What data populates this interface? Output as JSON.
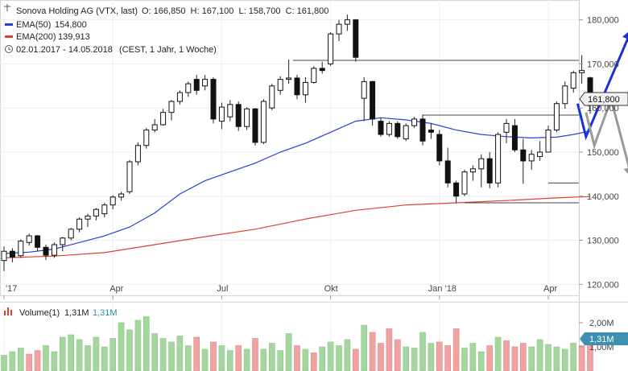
{
  "header": {
    "instrument": "Sonova Holding AG (VTX, last)",
    "ohlc": "O: 166,850  H: 167,100  L: 158,700  C: 161,800",
    "ema50_label": "EMA(50)",
    "ema50_value": "154,800",
    "ema200_label": "EMA(200)",
    "ema200_value": "139,913",
    "period": "02.01.2017 - 14.05.2018",
    "period_note": "(CEST, 1 Jahr, 1 Woche)"
  },
  "price_axis": {
    "ticks": [
      "180,000",
      "170,000",
      "160,000",
      "150,000",
      "140,000",
      "130,000",
      "120,000"
    ],
    "last_value": "161,800"
  },
  "time_axis": {
    "ticks": [
      "'17",
      "Apr",
      "Jul",
      "Okt",
      "Jan '18",
      "Apr"
    ]
  },
  "volume": {
    "label": "Volume(1)",
    "value1": "1,31M",
    "value2": "1,31M",
    "ticks": [
      "2,00M",
      "1,00M"
    ],
    "last_value": "1,31M"
  },
  "colors": {
    "ema50": "#2a3fd6",
    "ema200": "#e04030",
    "vol_up": "#a6d6a0",
    "vol_down": "#f0a3a0",
    "arrow_blue": "#1a2fd8",
    "arrow_grey": "#9a9a9a",
    "badge_price": "#f2f2f2",
    "badge_volume": "#3f8fb0"
  },
  "chart_data": {
    "type": "candlestick",
    "price_range": [
      117.5,
      184.5
    ],
    "volume_range": [
      0,
      2.5
    ],
    "weeks": 71,
    "candles": [
      [
        125.4,
        128.6,
        123.0,
        127.5
      ],
      [
        127.5,
        128.2,
        125.0,
        126.2
      ],
      [
        126.5,
        130.2,
        126.0,
        129.8
      ],
      [
        129.5,
        131.5,
        128.8,
        131.0
      ],
      [
        131.0,
        131.2,
        127.5,
        128.4
      ],
      [
        128.4,
        129.0,
        125.5,
        126.6
      ],
      [
        126.6,
        129.5,
        126.0,
        129.0
      ],
      [
        129.0,
        130.8,
        127.5,
        130.5
      ],
      [
        130.5,
        132.8,
        130.0,
        132.5
      ],
      [
        132.5,
        135.2,
        131.8,
        134.8
      ],
      [
        134.8,
        136.0,
        133.0,
        135.5
      ],
      [
        135.5,
        137.3,
        134.5,
        137.0
      ],
      [
        136.0,
        138.5,
        135.2,
        138.0
      ],
      [
        138.0,
        140.2,
        137.0,
        139.8
      ],
      [
        139.8,
        141.0,
        139.0,
        140.5
      ],
      [
        141.0,
        148.2,
        140.5,
        147.8
      ],
      [
        147.8,
        152.2,
        147.0,
        151.5
      ],
      [
        151.5,
        155.5,
        150.8,
        155.0
      ],
      [
        155.0,
        157.5,
        154.5,
        156.2
      ],
      [
        156.2,
        159.8,
        156.0,
        159.0
      ],
      [
        159.0,
        161.8,
        157.2,
        161.5
      ],
      [
        161.5,
        164.0,
        160.8,
        163.5
      ],
      [
        163.5,
        166.0,
        162.5,
        165.5
      ],
      [
        166.5,
        167.5,
        163.0,
        164.0
      ],
      [
        165.0,
        167.5,
        164.0,
        166.5
      ],
      [
        166.5,
        167.0,
        156.5,
        157.5
      ],
      [
        157.0,
        161.2,
        155.2,
        160.2
      ],
      [
        158.0,
        161.8,
        157.0,
        160.8
      ],
      [
        160.8,
        161.5,
        154.8,
        155.8
      ],
      [
        155.8,
        160.2,
        155.0,
        159.8
      ],
      [
        159.8,
        160.0,
        151.5,
        152.2
      ],
      [
        152.2,
        162.0,
        151.8,
        161.5
      ],
      [
        160.0,
        165.5,
        159.5,
        165.0
      ],
      [
        164.0,
        167.2,
        163.0,
        166.5
      ],
      [
        166.5,
        171.0,
        165.5,
        166.8
      ],
      [
        166.8,
        167.5,
        162.0,
        163.0
      ],
      [
        163.0,
        167.0,
        161.2,
        165.8
      ],
      [
        165.8,
        169.5,
        165.5,
        169.0
      ],
      [
        169.0,
        170.5,
        167.8,
        168.5
      ],
      [
        170.0,
        177.2,
        169.5,
        176.8
      ],
      [
        176.8,
        180.0,
        175.2,
        179.0
      ],
      [
        179.0,
        181.2,
        177.5,
        180.0
      ],
      [
        180.0,
        180.2,
        170.5,
        171.5
      ],
      [
        162.2,
        167.0,
        157.0,
        166.0
      ],
      [
        166.0,
        166.2,
        156.0,
        157.5
      ],
      [
        157.0,
        157.8,
        153.5,
        154.0
      ],
      [
        154.0,
        157.0,
        153.5,
        156.5
      ],
      [
        156.5,
        157.0,
        153.0,
        153.5
      ],
      [
        153.0,
        156.5,
        152.5,
        156.0
      ],
      [
        156.0,
        158.0,
        155.5,
        157.5
      ],
      [
        157.5,
        158.5,
        151.5,
        152.5
      ],
      [
        155.0,
        156.5,
        153.0,
        154.5
      ],
      [
        154.0,
        155.0,
        147.0,
        148.0
      ],
      [
        148.0,
        151.0,
        142.0,
        143.0
      ],
      [
        143.0,
        143.5,
        138.5,
        140.0
      ],
      [
        140.5,
        146.0,
        140.0,
        145.5
      ],
      [
        145.5,
        147.0,
        143.5,
        146.2
      ],
      [
        146.2,
        149.5,
        142.0,
        148.5
      ],
      [
        148.5,
        150.0,
        141.8,
        143.0
      ],
      [
        143.0,
        154.5,
        142.0,
        154.0
      ],
      [
        154.5,
        157.5,
        152.0,
        156.5
      ],
      [
        156.0,
        157.5,
        150.0,
        150.5
      ],
      [
        150.5,
        153.0,
        142.8,
        148.0
      ],
      [
        148.0,
        150.5,
        146.0,
        149.5
      ],
      [
        149.0,
        152.5,
        148.0,
        150.0
      ],
      [
        150.0,
        156.0,
        150.0,
        155.0
      ],
      [
        155.0,
        161.5,
        154.5,
        161.0
      ],
      [
        161.0,
        166.0,
        159.8,
        165.0
      ],
      [
        164.5,
        168.5,
        163.5,
        168.0
      ],
      [
        168.0,
        172.0,
        165.5,
        168.5
      ],
      [
        166.85,
        167.1,
        158.7,
        161.8
      ]
    ],
    "ema50": [
      [
        0,
        127.0
      ],
      [
        3,
        127.3
      ],
      [
        6,
        128.0
      ],
      [
        9,
        129.5
      ],
      [
        12,
        131.0
      ],
      [
        15,
        133.0
      ],
      [
        18,
        136.2
      ],
      [
        21,
        140.5
      ],
      [
        24,
        143.5
      ],
      [
        27,
        145.5
      ],
      [
        30,
        147.5
      ],
      [
        33,
        150.0
      ],
      [
        36,
        152.0
      ],
      [
        39,
        154.5
      ],
      [
        42,
        157.0
      ],
      [
        45,
        157.8
      ],
      [
        48,
        157.3
      ],
      [
        51,
        156.5
      ],
      [
        54,
        155.0
      ],
      [
        57,
        154.0
      ],
      [
        60,
        153.5
      ],
      [
        63,
        153.2
      ],
      [
        66,
        153.4
      ],
      [
        68,
        154.0
      ],
      [
        70,
        154.8
      ]
    ],
    "ema200": [
      [
        0,
        126.0
      ],
      [
        6,
        126.4
      ],
      [
        12,
        127.2
      ],
      [
        18,
        129.0
      ],
      [
        24,
        130.8
      ],
      [
        30,
        132.5
      ],
      [
        36,
        134.8
      ],
      [
        42,
        136.8
      ],
      [
        48,
        138.0
      ],
      [
        54,
        138.5
      ],
      [
        60,
        139.0
      ],
      [
        66,
        139.6
      ],
      [
        70,
        139.913
      ]
    ],
    "horizontal_levels": [
      {
        "y": 170.8,
        "from": 34.5,
        "to": 70.0
      },
      {
        "y": 158.4,
        "from": 50.0,
        "to": 70.0
      },
      {
        "y": 143.0,
        "from": 65.0,
        "to": 70.0
      },
      {
        "y": 138.5,
        "from": 55.0,
        "to": 70.0
      }
    ],
    "scenario_arrows": [
      {
        "color": "arrow_blue",
        "points": [
          [
            68.5,
            161.0
          ],
          [
            69.5,
            153.5
          ],
          [
            75.0,
            178.0
          ]
        ]
      },
      {
        "color": "arrow_grey",
        "points": [
          [
            69.5,
            159.0
          ],
          [
            70.5,
            151.5
          ],
          [
            72.5,
            162.0
          ],
          [
            75.0,
            144.0
          ]
        ]
      }
    ],
    "volume": [
      [
        0.65,
        1
      ],
      [
        0.8,
        1
      ],
      [
        0.95,
        1
      ],
      [
        0.7,
        0
      ],
      [
        0.85,
        0
      ],
      [
        1.05,
        1
      ],
      [
        0.8,
        1
      ],
      [
        1.4,
        1
      ],
      [
        1.5,
        1
      ],
      [
        1.3,
        1
      ],
      [
        1.05,
        1
      ],
      [
        1.4,
        1
      ],
      [
        1.0,
        1
      ],
      [
        1.35,
        1
      ],
      [
        2.0,
        1
      ],
      [
        1.7,
        1
      ],
      [
        2.1,
        1
      ],
      [
        2.25,
        1
      ],
      [
        1.55,
        1
      ],
      [
        1.35,
        1
      ],
      [
        1.2,
        1
      ],
      [
        1.45,
        1
      ],
      [
        1.05,
        1
      ],
      [
        1.4,
        0
      ],
      [
        0.9,
        1
      ],
      [
        1.2,
        0
      ],
      [
        1.05,
        1
      ],
      [
        0.85,
        1
      ],
      [
        1.05,
        0
      ],
      [
        0.9,
        1
      ],
      [
        1.35,
        0
      ],
      [
        0.9,
        1
      ],
      [
        1.15,
        1
      ],
      [
        0.85,
        1
      ],
      [
        1.55,
        1
      ],
      [
        1.05,
        0
      ],
      [
        0.9,
        1
      ],
      [
        0.75,
        0
      ],
      [
        1.0,
        1
      ],
      [
        1.2,
        1
      ],
      [
        1.05,
        1
      ],
      [
        1.3,
        1
      ],
      [
        0.9,
        0
      ],
      [
        1.9,
        1
      ],
      [
        1.6,
        0
      ],
      [
        1.15,
        0
      ],
      [
        1.75,
        0
      ],
      [
        1.3,
        0
      ],
      [
        1.0,
        1
      ],
      [
        0.95,
        1
      ],
      [
        1.6,
        1
      ],
      [
        1.15,
        1
      ],
      [
        1.2,
        0
      ],
      [
        1.05,
        0
      ],
      [
        1.75,
        0
      ],
      [
        0.95,
        1
      ],
      [
        1.15,
        1
      ],
      [
        0.8,
        1
      ],
      [
        1.05,
        0
      ],
      [
        1.4,
        1
      ],
      [
        1.25,
        0
      ],
      [
        1.0,
        0
      ],
      [
        1.15,
        0
      ],
      [
        1.0,
        1
      ],
      [
        1.3,
        1
      ],
      [
        1.1,
        1
      ],
      [
        1.0,
        1
      ],
      [
        0.9,
        1
      ],
      [
        1.15,
        1
      ],
      [
        1.05,
        0
      ],
      [
        1.3,
        0
      ]
    ]
  }
}
